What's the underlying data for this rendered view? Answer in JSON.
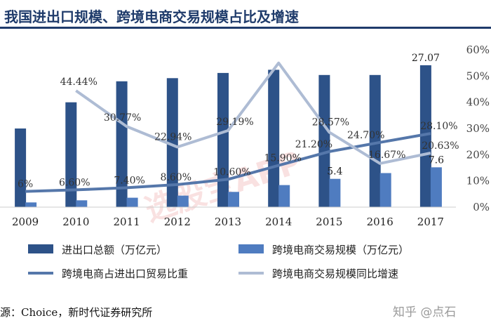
{
  "header": {
    "title": "我国进出口规模、跨境电商交易规模占比及增速"
  },
  "source": "源：Choice，新时代证券研究所",
  "watermark": {
    "center_text": "选股宝APP",
    "corner_text": "知乎 @点石"
  },
  "colors": {
    "total_bar": "#2d5288",
    "cross_bar": "#4f7cc0",
    "share_line": "#5577aa",
    "growth_line": "#aebcd4",
    "title": "#1f3b6b"
  },
  "chart_data": {
    "type": "bar",
    "categories": [
      "2009",
      "2010",
      "2011",
      "2012",
      "2013",
      "2014",
      "2015",
      "2016",
      "2017"
    ],
    "series": [
      {
        "name": "进出口总额（万亿元）",
        "type": "bar",
        "axis": "left",
        "values": [
          15.0,
          20.0,
          24.0,
          24.6,
          25.6,
          26.2,
          25.2,
          25.2,
          27.07
        ],
        "labels": [
          "",
          "",
          "",
          "",
          "",
          "",
          "",
          "",
          "27.07"
        ]
      },
      {
        "name": "跨境电商交易规模（万亿元）",
        "type": "bar",
        "axis": "left",
        "values": [
          0.9,
          1.3,
          1.8,
          2.2,
          2.9,
          4.2,
          5.4,
          6.5,
          7.6
        ],
        "labels": [
          "",
          "",
          "",
          "",
          "",
          "",
          "5.4",
          "",
          "7.6"
        ]
      },
      {
        "name": "跨境电商占进出口贸易比重",
        "type": "line",
        "axis": "right",
        "values": [
          6,
          6.6,
          7.4,
          8.6,
          10.6,
          15.9,
          21.2,
          24.7,
          28.1
        ],
        "labels": [
          "6%",
          "6.60%",
          "7.40%",
          "8.60%",
          "10.60%",
          "15.90%",
          "21.20%",
          "24.70%",
          "28.10%"
        ]
      },
      {
        "name": "跨境电商交易规模同比增速",
        "type": "line",
        "axis": "right",
        "values": [
          null,
          44.44,
          30.77,
          22.94,
          29.19,
          55.0,
          28.57,
          16.67,
          20.63
        ],
        "labels": [
          "",
          "44.44%",
          "30.77%",
          "22.94%",
          "29.19%",
          "",
          "28.57%",
          "16.67%",
          "20.63%"
        ]
      }
    ],
    "left_ylim": [
      0,
      30
    ],
    "right_ylim": [
      0,
      60
    ],
    "right_ticks": [
      "0%",
      "10%",
      "20%",
      "30%",
      "40%",
      "50%",
      "60%"
    ],
    "grid": false,
    "legend_position": "bottom"
  }
}
